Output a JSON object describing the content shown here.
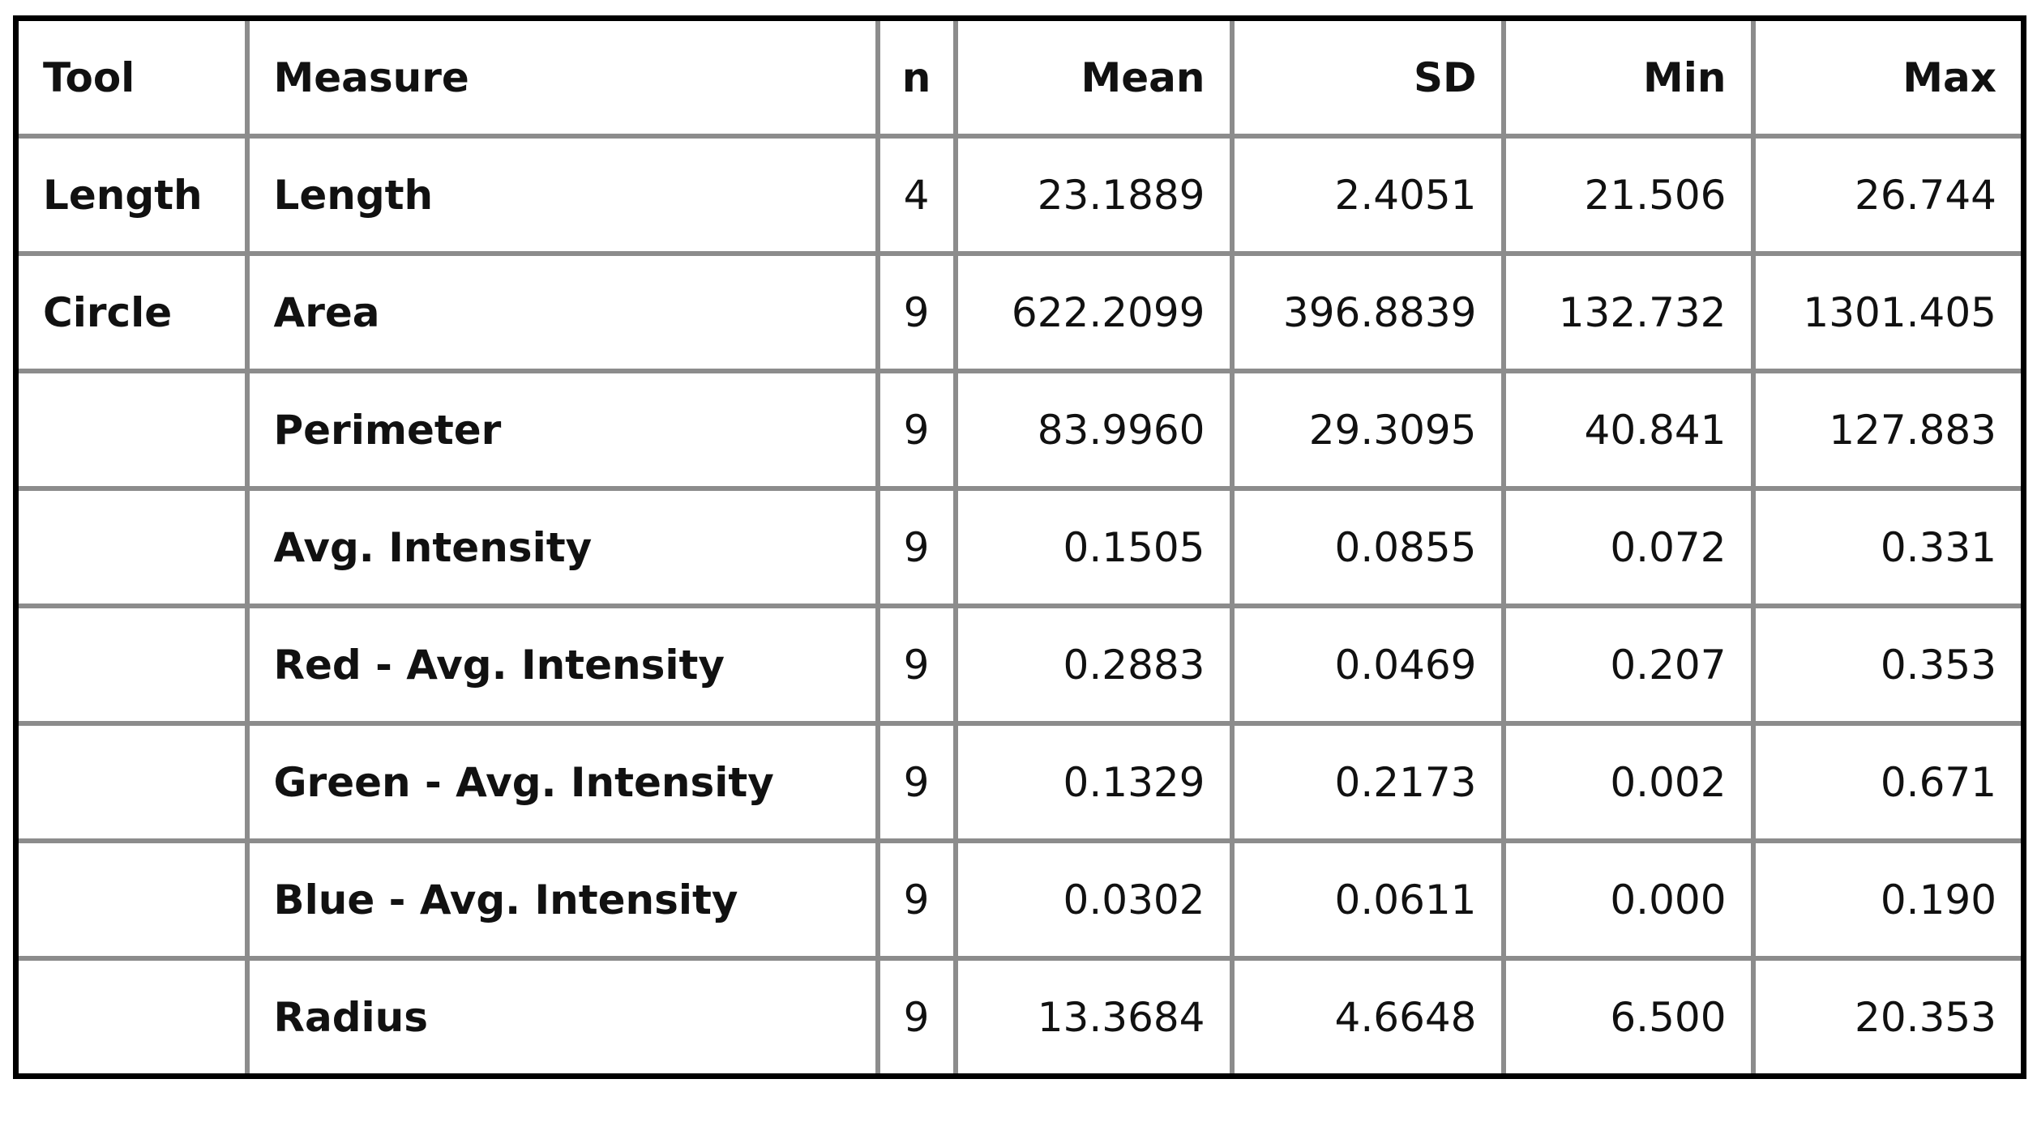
{
  "table": {
    "header": [
      "Tool",
      "Measure",
      "n",
      "Mean",
      "SD",
      "Min",
      "Max"
    ],
    "rows": [
      {
        "tool": "Length",
        "cells": [
          "Length",
          "4",
          "23.1889",
          "2.4051",
          "21.506",
          "26.744"
        ]
      },
      {
        "tool": "Circle",
        "cells": [
          "Area",
          "9",
          "622.2099",
          "396.8839",
          "132.732",
          "1301.405"
        ]
      },
      {
        "cells": [
          "Perimeter",
          "9",
          "83.9960",
          "29.3095",
          "40.841",
          "127.883"
        ]
      },
      {
        "cells": [
          "Avg. Intensity",
          "9",
          "0.1505",
          "0.0855",
          "0.072",
          "0.331"
        ]
      },
      {
        "cells": [
          "Red - Avg. Intensity",
          "9",
          "0.2883",
          "0.0469",
          "0.207",
          "0.353"
        ]
      },
      {
        "cells": [
          "Green - Avg. Intensity",
          "9",
          "0.1329",
          "0.2173",
          "0.002",
          "0.671"
        ]
      },
      {
        "cells": [
          "Blue - Avg. Intensity",
          "9",
          "0.0302",
          "0.0611",
          "0.000",
          "0.190"
        ]
      },
      {
        "cells": [
          "Radius",
          "9",
          "13.3684",
          "4.6648",
          "6.500",
          "20.353"
        ]
      }
    ]
  }
}
